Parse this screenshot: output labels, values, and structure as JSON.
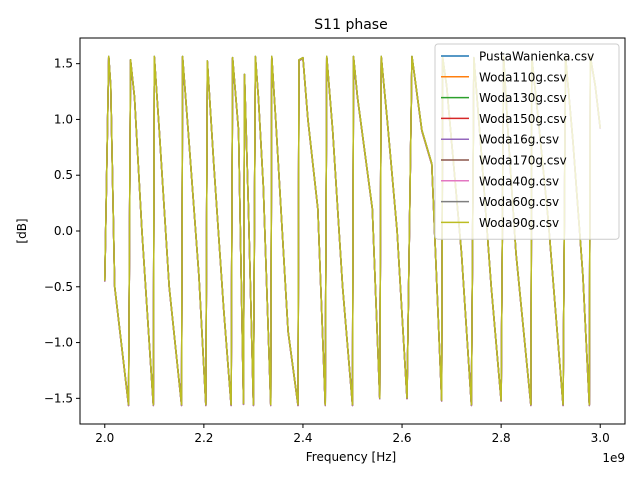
{
  "chart_data": {
    "type": "line",
    "title": "S11 phase",
    "xlabel": "Frequency [Hz]",
    "ylabel": "[dB]",
    "x_offset_label": "1e9",
    "xlim": [
      1.95,
      3.05
    ],
    "ylim": [
      -1.73,
      1.73
    ],
    "x_ticks": [
      2.0,
      2.2,
      2.4,
      2.6,
      2.8,
      3.0
    ],
    "x_tick_labels": [
      "2.0",
      "2.2",
      "2.4",
      "2.6",
      "2.8",
      "3.0"
    ],
    "y_ticks": [
      -1.5,
      -1.0,
      -0.5,
      0.0,
      0.5,
      1.0,
      1.5
    ],
    "y_tick_labels": [
      "−1.5",
      "−1.0",
      "−0.5",
      "0.0",
      "0.5",
      "1.0",
      "1.5"
    ],
    "grid": false,
    "legend_position": "top-right",
    "wrap_points": [
      [
        2.0,
        -0.45
      ],
      [
        2.008,
        1.56
      ],
      [
        2.012,
        1.3
      ],
      [
        2.02,
        -0.5
      ],
      [
        2.048,
        -1.56
      ],
      [
        2.052,
        1.53
      ],
      [
        2.06,
        1.2
      ],
      [
        2.075,
        0.0
      ],
      [
        2.098,
        -1.56
      ],
      [
        2.1,
        1.56
      ],
      [
        2.11,
        0.9
      ],
      [
        2.13,
        -0.5
      ],
      [
        2.155,
        -1.56
      ],
      [
        2.157,
        1.56
      ],
      [
        2.17,
        0.8
      ],
      [
        2.19,
        -0.4
      ],
      [
        2.204,
        -1.56
      ],
      [
        2.207,
        1.52
      ],
      [
        2.22,
        0.6
      ],
      [
        2.24,
        -0.7
      ],
      [
        2.255,
        -1.56
      ],
      [
        2.258,
        1.55
      ],
      [
        2.27,
        0.9
      ],
      [
        2.28,
        -1.55
      ],
      [
        2.282,
        1.4
      ],
      [
        2.29,
        0.2
      ],
      [
        2.3,
        -1.56
      ],
      [
        2.304,
        1.56
      ],
      [
        2.31,
        1.2
      ],
      [
        2.32,
        0.4
      ],
      [
        2.335,
        -1.56
      ],
      [
        2.337,
        1.56
      ],
      [
        2.345,
        1.0
      ],
      [
        2.37,
        -0.9
      ],
      [
        2.39,
        -1.56
      ],
      [
        2.392,
        1.53
      ],
      [
        2.4,
        1.55
      ],
      [
        2.41,
        1.0
      ],
      [
        2.43,
        0.2
      ],
      [
        2.445,
        -1.56
      ],
      [
        2.448,
        1.56
      ],
      [
        2.46,
        0.9
      ],
      [
        2.48,
        -0.5
      ],
      [
        2.5,
        -1.56
      ],
      [
        2.502,
        1.56
      ],
      [
        2.51,
        1.2
      ],
      [
        2.54,
        0.2
      ],
      [
        2.555,
        -1.5
      ],
      [
        2.558,
        1.56
      ],
      [
        2.57,
        1.0
      ],
      [
        2.59,
        0.0
      ],
      [
        2.61,
        -1.5
      ],
      [
        2.62,
        1.56
      ],
      [
        2.625,
        1.4
      ],
      [
        2.64,
        0.9
      ],
      [
        2.66,
        0.6
      ],
      [
        2.68,
        -1.52
      ],
      [
        2.682,
        1.55
      ],
      [
        2.69,
        1.3
      ],
      [
        2.72,
        -0.2
      ],
      [
        2.74,
        -1.56
      ],
      [
        2.745,
        1.55
      ],
      [
        2.76,
        0.7
      ],
      [
        2.78,
        -0.5
      ],
      [
        2.8,
        -1.52
      ],
      [
        2.805,
        1.56
      ],
      [
        2.815,
        0.8
      ],
      [
        2.83,
        -0.2
      ],
      [
        2.86,
        -1.56
      ],
      [
        2.862,
        1.55
      ],
      [
        2.875,
        1.0
      ],
      [
        2.895,
        0.1
      ],
      [
        2.925,
        -1.56
      ],
      [
        2.93,
        1.56
      ],
      [
        2.945,
        0.8
      ],
      [
        2.965,
        -0.4
      ],
      [
        2.978,
        -1.56
      ],
      [
        2.98,
        1.56
      ],
      [
        2.99,
        1.3
      ],
      [
        3.0,
        0.92
      ]
    ],
    "series": [
      {
        "name": "PustaWanienka.csv",
        "color": "#1f77b4"
      },
      {
        "name": "Woda110g.csv",
        "color": "#ff7f0e"
      },
      {
        "name": "Woda130g.csv",
        "color": "#2ca02c"
      },
      {
        "name": "Woda150g.csv",
        "color": "#d62728"
      },
      {
        "name": "Woda16g.csv",
        "color": "#9467bd"
      },
      {
        "name": "Woda170g.csv",
        "color": "#8c564b"
      },
      {
        "name": "Woda40g.csv",
        "color": "#e377c2"
      },
      {
        "name": "Woda60g.csv",
        "color": "#7f7f7f"
      },
      {
        "name": "Woda90g.csv",
        "color": "#bcbd22"
      }
    ]
  }
}
